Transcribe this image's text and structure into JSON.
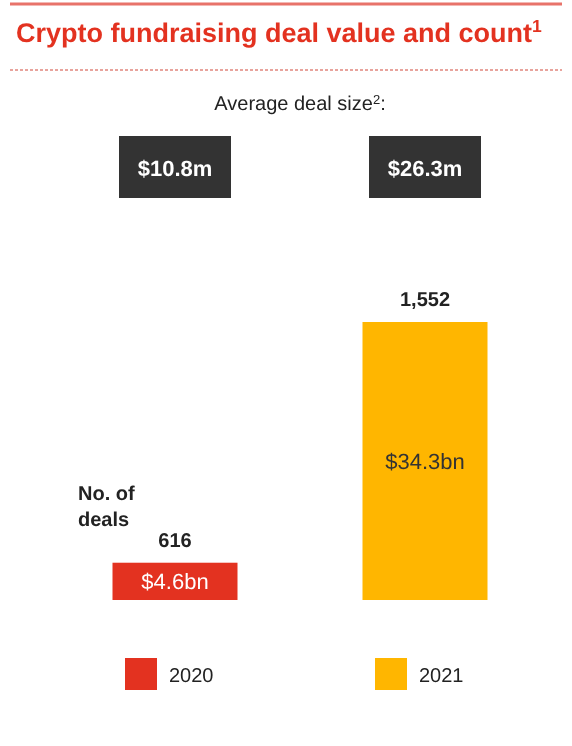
{
  "chart_data": {
    "type": "bar",
    "title": "Crypto fundraising deal value and count$^{1}$",
    "categories": [
      null,
      null
    ],
    "stacked": true,
    "relative": false,
    "series": [
      {
        "name": "2020",
        "color": "#e33220",
        "values": [
          4.6,
          null
        ],
        "value_labels": [
          "$4.6bn",
          null
        ]
      },
      {
        "name": "2021",
        "color": "#ffb600",
        "values": [
          null,
          34.3
        ],
        "value_labels": [
          null,
          "$34.3bn"
        ]
      }
    ],
    "legend": "bottom",
    "annotations": [
      "Average deal size$^{2}$:",
      "$10.8m",
      "$26.3m",
      "No. of deals",
      "616",
      "1,552"
    ]
  }
}
